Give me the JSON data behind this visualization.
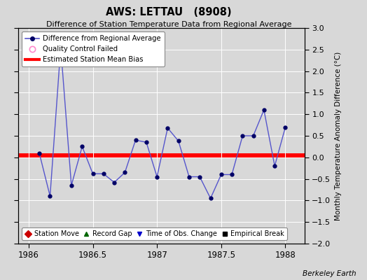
{
  "title": "AWS: LETTAU   (8908)",
  "subtitle": "Difference of Station Temperature Data from Regional Average",
  "ylabel_right": "Monthly Temperature Anomaly Difference (°C)",
  "background_color": "#d8d8d8",
  "plot_bg_color": "#d8d8d8",
  "bias_value": 0.05,
  "ylim": [
    -2,
    3
  ],
  "xlim": [
    1985.92,
    1988.15
  ],
  "yticks": [
    -2,
    -1.5,
    -1,
    -0.5,
    0,
    0.5,
    1,
    1.5,
    2,
    2.5,
    3
  ],
  "xticks": [
    1986,
    1986.5,
    1987,
    1987.5,
    1988
  ],
  "xticklabels": [
    "1986",
    "1986.5",
    "1987",
    "1987.5",
    "1988"
  ],
  "line_color": "#5555cc",
  "marker_color": "#000066",
  "bias_color": "#ff0000",
  "x": [
    1986.083,
    1986.167,
    1986.25,
    1986.333,
    1986.417,
    1986.5,
    1986.583,
    1986.667,
    1986.75,
    1986.833,
    1986.917,
    1987.0,
    1987.083,
    1987.167,
    1987.25,
    1987.333,
    1987.417,
    1987.5,
    1987.583,
    1987.667,
    1987.75,
    1987.833,
    1987.917,
    1988.0
  ],
  "y": [
    0.1,
    -0.9,
    2.55,
    -0.65,
    0.25,
    -0.38,
    -0.38,
    -0.58,
    -0.35,
    0.4,
    0.35,
    -0.45,
    0.68,
    0.38,
    -0.45,
    -0.45,
    -0.95,
    -0.4,
    -0.4,
    0.5,
    0.5,
    1.1,
    -0.2,
    0.7
  ],
  "footnote": "Berkeley Earth",
  "grid_color": "#ffffff"
}
